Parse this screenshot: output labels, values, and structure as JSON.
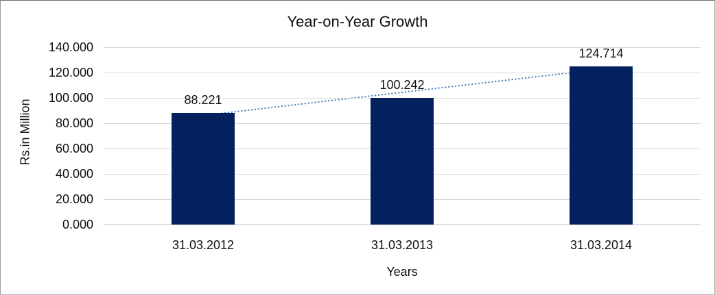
{
  "chart_data": {
    "type": "bar",
    "title": "Year-on-Year Growth",
    "xlabel": "Years",
    "ylabel": "Rs.in Million",
    "categories": [
      "31.03.2012",
      "31.03.2013",
      "31.03.2014"
    ],
    "values": [
      88.221,
      100.242,
      124.714
    ],
    "value_labels": [
      "88.221",
      "100.242",
      "124.714"
    ],
    "ylim": [
      0,
      140
    ],
    "ytick_step": 20,
    "ytick_labels": [
      "0.000",
      "20.000",
      "40.000",
      "60.000",
      "80.000",
      "100.000",
      "120.000",
      "140.000"
    ],
    "grid": true,
    "legend": "none",
    "trendline": {
      "type": "linear",
      "style": "dotted"
    }
  },
  "colors": {
    "bar": "#03215f",
    "trendline": "#4f81bd",
    "gridline": "#d9d9d9",
    "axis_line": "#c0c0c0",
    "text": "#101010",
    "frame_border": "#b5b5b5"
  }
}
